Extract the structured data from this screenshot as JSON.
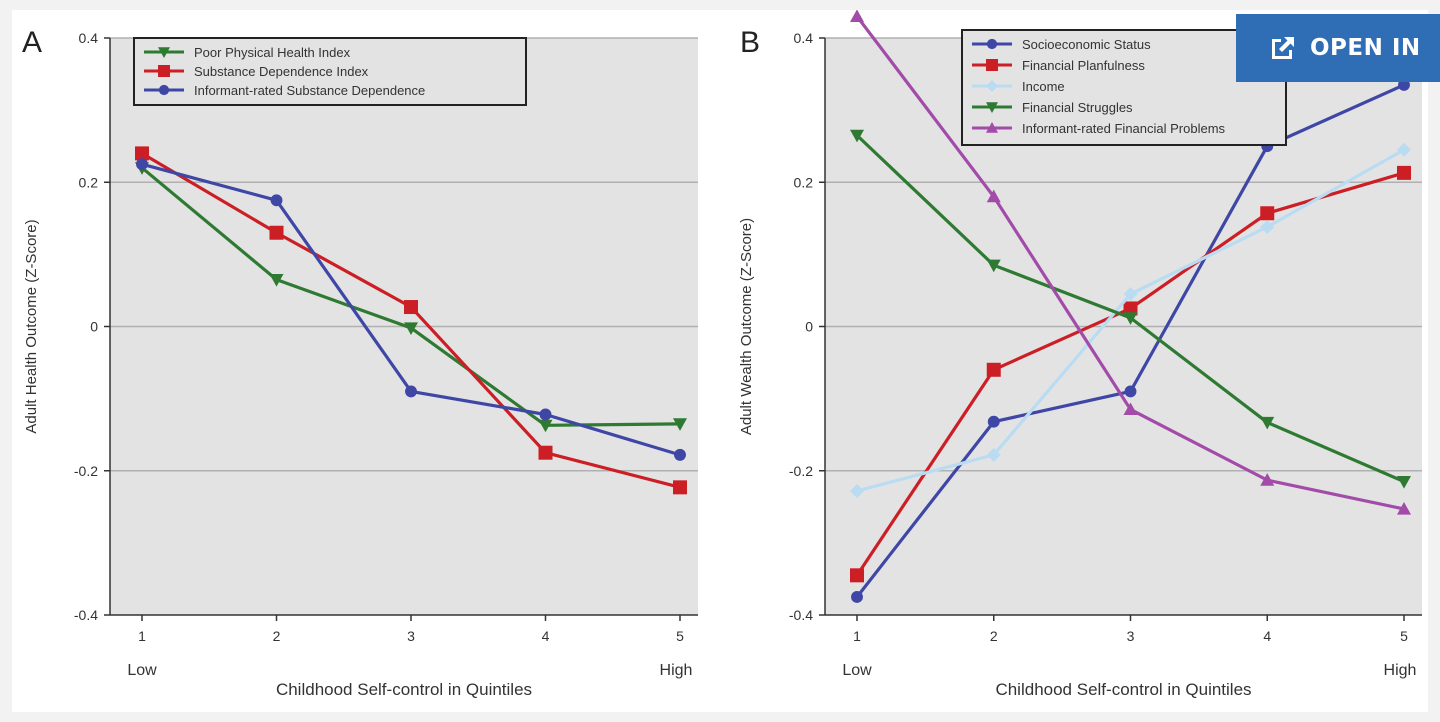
{
  "colors": {
    "plot_background": "#e3e3e3",
    "green": "#2f7a32",
    "red": "#cc1f25",
    "blue": "#3f47a6",
    "light_blue": "#b9dcf2",
    "purple": "#a24ba8",
    "button": "#2f6db4"
  },
  "open_in_button": {
    "label": "OPEN IN",
    "icon": "external-link-icon"
  },
  "chart_data": [
    {
      "type": "line",
      "panel_label": "A",
      "x": [
        1,
        2,
        3,
        4,
        5
      ],
      "x_tick_labels": [
        "1",
        "2",
        "3",
        "4",
        "5"
      ],
      "x_end_labels": [
        "Low",
        "High"
      ],
      "xlabel": "Childhood Self-control in Quintiles",
      "ylabel": "Adult Health Outcome (Z-Score)",
      "ylim": [
        -0.4,
        0.4
      ],
      "y_ticks": [
        -0.4,
        -0.2,
        0,
        0.2,
        0.4
      ],
      "y_tick_labels": [
        "-0.4",
        "-0.2",
        "0",
        "0.2",
        "0.4"
      ],
      "grid": "horizontal",
      "legend_position": "top-left",
      "series": [
        {
          "name": "Poor Physical Health Index",
          "marker": "triangle-down",
          "color": "#2f7a32",
          "values": [
            0.22,
            0.065,
            -0.002,
            -0.137,
            -0.135
          ]
        },
        {
          "name": "Substance Dependence Index",
          "marker": "square",
          "color": "#cc1f25",
          "values": [
            0.24,
            0.13,
            0.027,
            -0.175,
            -0.223
          ]
        },
        {
          "name": "Informant-rated Substance Dependence",
          "marker": "circle",
          "color": "#3f47a6",
          "values": [
            0.225,
            0.175,
            -0.09,
            -0.122,
            -0.178
          ]
        }
      ]
    },
    {
      "type": "line",
      "panel_label": "B",
      "x": [
        1,
        2,
        3,
        4,
        5
      ],
      "x_tick_labels": [
        "1",
        "2",
        "3",
        "4",
        "5"
      ],
      "x_end_labels": [
        "Low",
        "High"
      ],
      "xlabel": "Childhood Self-control in Quintiles",
      "ylabel": "Adult Wealth Outcome (Z-Score)",
      "ylim": [
        -0.4,
        0.4
      ],
      "y_ticks": [
        -0.4,
        -0.2,
        0,
        0.2,
        0.4
      ],
      "y_tick_labels": [
        "-0.4",
        "-0.2",
        "0",
        "0.2",
        "0.4"
      ],
      "grid": "horizontal",
      "legend_position": "top-right",
      "series": [
        {
          "name": "Socioeconomic Status",
          "marker": "circle",
          "color": "#3f47a6",
          "values": [
            -0.375,
            -0.132,
            -0.09,
            0.25,
            0.335
          ]
        },
        {
          "name": "Financial Planfulness",
          "marker": "square",
          "color": "#cc1f25",
          "values": [
            -0.345,
            -0.06,
            0.025,
            0.157,
            0.213
          ]
        },
        {
          "name": "Income",
          "marker": "diamond",
          "color": "#b9dcf2",
          "values": [
            -0.228,
            -0.178,
            0.045,
            0.138,
            0.245
          ]
        },
        {
          "name": "Financial Struggles",
          "marker": "triangle-down",
          "color": "#2f7a32",
          "values": [
            0.265,
            0.085,
            0.012,
            -0.133,
            -0.215
          ]
        },
        {
          "name": "Informant-rated Financial Problems",
          "marker": "triangle-up",
          "color": "#a24ba8",
          "values": [
            0.43,
            0.18,
            -0.115,
            -0.213,
            -0.253
          ]
        }
      ]
    }
  ]
}
